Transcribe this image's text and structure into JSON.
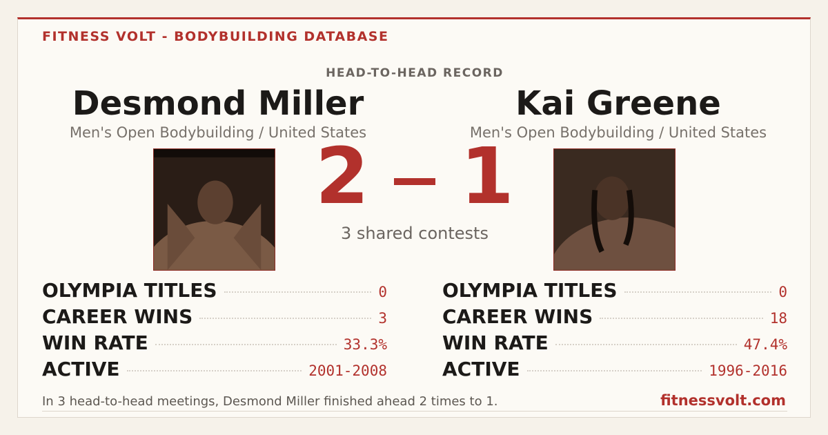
{
  "header": {
    "brand": "FITNESS VOLT - BODYBUILDING DATABASE"
  },
  "matchup": {
    "label": "HEAD-TO-HEAD RECORD",
    "score": [
      2,
      1
    ],
    "shared": "3 shared contests"
  },
  "competitors": [
    {
      "name": "Desmond Miller",
      "division": "Men's Open Bodybuilding / United States",
      "stats": [
        {
          "label": "OLYMPIA TITLES",
          "value": "0"
        },
        {
          "label": "CAREER WINS",
          "value": "3"
        },
        {
          "label": "WIN RATE",
          "value": "33.3%"
        },
        {
          "label": "ACTIVE",
          "value": "2001-2008"
        }
      ]
    },
    {
      "name": "Kai Greene",
      "division": "Men's Open Bodybuilding / United States",
      "stats": [
        {
          "label": "OLYMPIA TITLES",
          "value": "0"
        },
        {
          "label": "CAREER WINS",
          "value": "18"
        },
        {
          "label": "WIN RATE",
          "value": "47.4%"
        },
        {
          "label": "ACTIVE",
          "value": "1996-2016"
        }
      ]
    }
  ],
  "footer": {
    "summary": "In 3 head-to-head meetings, Desmond Miller finished ahead 2 times to 1.",
    "site": "fitnessvolt.com"
  }
}
